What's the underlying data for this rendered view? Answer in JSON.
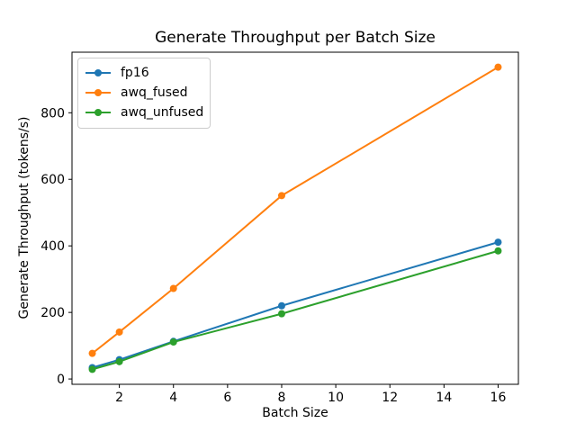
{
  "chart_data": {
    "type": "line",
    "title": "Generate Throughput per Batch Size",
    "xlabel": "Batch Size",
    "ylabel": "Generate Throughput (tokens/s)",
    "x": [
      1,
      2,
      4,
      8,
      16
    ],
    "series": [
      {
        "name": "fp16",
        "color": "#1f77b4",
        "values": [
          34,
          58,
          113,
          220,
          411
        ]
      },
      {
        "name": "awq_fused",
        "color": "#ff7f0e",
        "values": [
          77,
          141,
          272,
          551,
          937
        ]
      },
      {
        "name": "awq_unfused",
        "color": "#2ca02c",
        "values": [
          29,
          52,
          111,
          196,
          385
        ]
      }
    ],
    "xticks": [
      2,
      4,
      6,
      8,
      10,
      12,
      14,
      16
    ],
    "yticks": [
      0,
      200,
      400,
      600,
      800
    ],
    "xlim": [
      0.25,
      16.75
    ],
    "ylim": [
      -16,
      982
    ],
    "legend_position": "upper left",
    "grid": false,
    "background_color": "#ffffff",
    "axes_color": "#000000"
  }
}
